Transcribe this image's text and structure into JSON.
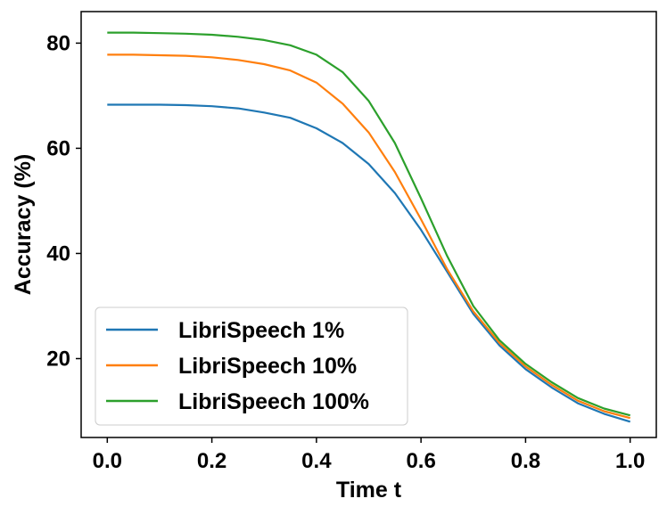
{
  "chart_data": {
    "type": "line",
    "title": "",
    "xlabel": "Time t",
    "ylabel": "Accuracy (%)",
    "xlim": [
      -0.05,
      1.05
    ],
    "ylim": [
      5,
      86
    ],
    "xticks": [
      "0.0",
      "0.2",
      "0.4",
      "0.6",
      "0.8",
      "1.0"
    ],
    "yticks": [
      "20",
      "40",
      "60",
      "80"
    ],
    "grid": false,
    "legend_position": "lower-left",
    "x": [
      0.0,
      0.05,
      0.1,
      0.15,
      0.2,
      0.25,
      0.3,
      0.35,
      0.4,
      0.45,
      0.5,
      0.55,
      0.6,
      0.65,
      0.7,
      0.75,
      0.8,
      0.85,
      0.9,
      0.95,
      1.0
    ],
    "series": [
      {
        "name": "LibriSpeech 1%",
        "color": "#1f77b4",
        "values": [
          68.3,
          68.3,
          68.3,
          68.2,
          68.0,
          67.6,
          66.8,
          65.8,
          63.8,
          61.0,
          57.0,
          51.5,
          44.5,
          36.5,
          28.5,
          22.5,
          18.0,
          14.5,
          11.5,
          9.5,
          8.0
        ]
      },
      {
        "name": "LibriSpeech 10%",
        "color": "#ff7f0e",
        "values": [
          77.8,
          77.8,
          77.7,
          77.6,
          77.3,
          76.8,
          76.0,
          74.8,
          72.5,
          68.5,
          63.0,
          55.5,
          46.5,
          37.0,
          29.0,
          23.0,
          18.5,
          15.0,
          12.0,
          10.0,
          8.7
        ]
      },
      {
        "name": "LibriSpeech 100%",
        "color": "#2ca02c",
        "values": [
          82.0,
          82.0,
          81.9,
          81.8,
          81.6,
          81.2,
          80.6,
          79.6,
          77.8,
          74.5,
          69.0,
          61.0,
          50.5,
          39.5,
          30.0,
          23.5,
          19.0,
          15.5,
          12.5,
          10.5,
          9.2
        ]
      }
    ]
  }
}
